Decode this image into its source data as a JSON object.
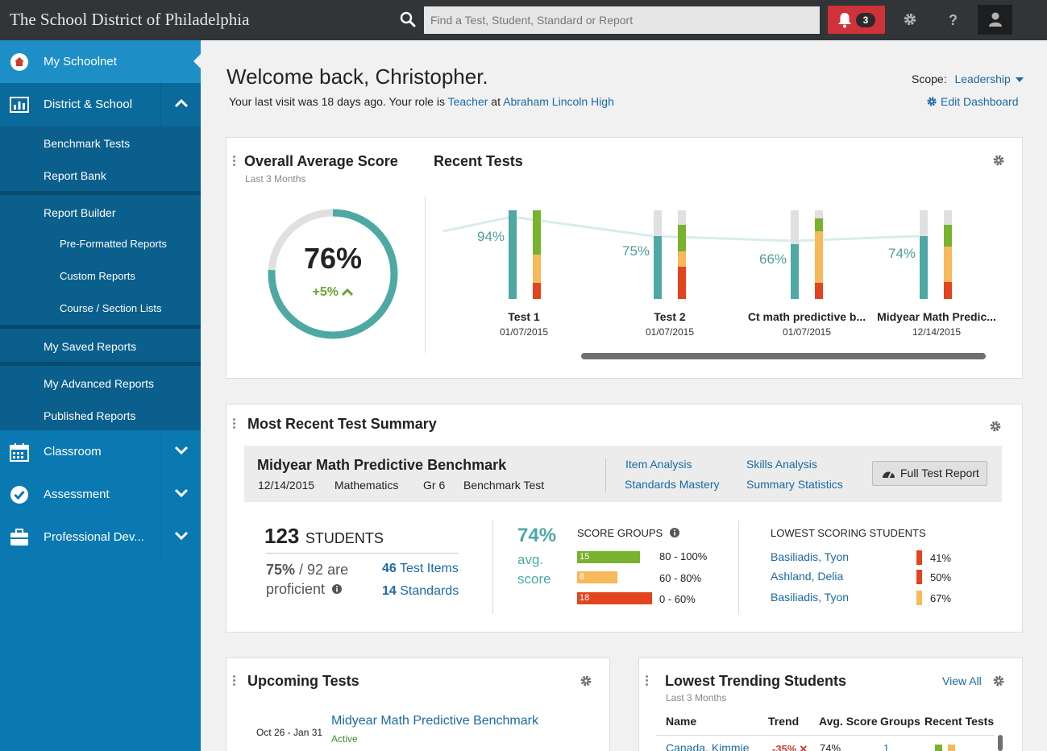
{
  "header": {
    "brand": "The School District of Philadelphia",
    "search_placeholder": "Find a Test, Student, Standard or Report",
    "alert_count": "3",
    "help_label": "?"
  },
  "sidebar": {
    "home": "My Schoolnet",
    "district": "District & School",
    "sub_items": {
      "benchmark": "Benchmark Tests",
      "report_bank": "Report Bank",
      "report_builder": "Report Builder",
      "preformatted": "Pre-Formatted Reports",
      "custom": "Custom Reports",
      "course": "Course / Section Lists",
      "saved": "My Saved Reports",
      "advanced": "My Advanced Reports",
      "published": "Published Reports"
    },
    "classroom": "Classroom",
    "assessment": "Assessment",
    "professional": "Professional Dev..."
  },
  "welcome": {
    "title": "Welcome back, Christopher.",
    "visit_prefix": "Your last visit was 18 days ago. Your role is ",
    "role": "Teacher",
    "at": " at ",
    "school": "Abraham Lincoln High",
    "scope_label": "Scope:",
    "scope_value": "Leadership",
    "edit_dashboard": "Edit Dashboard"
  },
  "overall": {
    "title": "Overall Average Score",
    "subtitle": "Last 3 Months",
    "score": "76%",
    "score_fraction": 0.76,
    "delta": "+5%"
  },
  "recent_tests": {
    "title": "Recent Tests",
    "tests": [
      {
        "name": "Test 1",
        "date": "01/07/2015",
        "pct": "94%"
      },
      {
        "name": "Test 2",
        "date": "01/07/2015",
        "pct": "75%"
      },
      {
        "name": "Ct math predictive b...",
        "date": "01/07/2015",
        "pct": "66%"
      },
      {
        "name": "Midyear Math Predic...",
        "date": "12/14/2015",
        "pct": "74%"
      }
    ]
  },
  "summary": {
    "title": "Most Recent Test Summary",
    "test_name": "Midyear Math Predictive Benchmark",
    "date": "12/14/2015",
    "subject": "Mathematics",
    "grade": "Gr 6",
    "type": "Benchmark Test",
    "links": {
      "item_analysis": "Item Analysis",
      "skills_analysis": "Skills Analysis",
      "standards_mastery": "Standards Mastery",
      "summary_statistics": "Summary Statistics"
    },
    "full_report": "Full Test Report",
    "students_count": "123",
    "students_label": "STUDENTS",
    "proficient_pct": "75%",
    "proficient_rest": "/ 92 are",
    "proficient_label": "proficient",
    "test_items_count": "46",
    "test_items_label": "Test Items",
    "standards_count": "14",
    "standards_label": "Standards",
    "avg_pct": "74%",
    "avg_label1": "avg.",
    "avg_label2": "score",
    "score_groups_title": "SCORE GROUPS",
    "score_groups": [
      {
        "count": "15",
        "range": "80 - 100%"
      },
      {
        "count": "8",
        "range": "60 - 80%"
      },
      {
        "count": "18",
        "range": "0 - 60%"
      }
    ],
    "lowest_title": "LOWEST SCORING STUDENTS",
    "lowest": [
      {
        "name": "Basiliadis, Tyon",
        "pct": "41%"
      },
      {
        "name": "Ashland, Delia",
        "pct": "50%"
      },
      {
        "name": "Basiliadis, Tyon",
        "pct": "67%"
      }
    ]
  },
  "upcoming": {
    "title": "Upcoming Tests",
    "dates": "Oct 26 - Jan 31",
    "test": "Midyear Math Predictive Benchmark",
    "status": "Active"
  },
  "trending": {
    "title": "Lowest Trending Students",
    "subtitle": "Last 3 Months",
    "view_all": "View All",
    "columns": [
      "Name",
      "Trend",
      "Avg. Score",
      "Groups",
      "Recent Tests"
    ],
    "row": {
      "name": "Canada, Kimmie",
      "trend": "-35%",
      "avg": "74%",
      "groups": "1"
    }
  },
  "colors": {
    "teal": "#4ea8a4",
    "green": "#79b22f",
    "orange": "#f7b95a",
    "red": "#e2441f",
    "sidebar": "#0a79b2",
    "link": "#1a6aa5"
  }
}
